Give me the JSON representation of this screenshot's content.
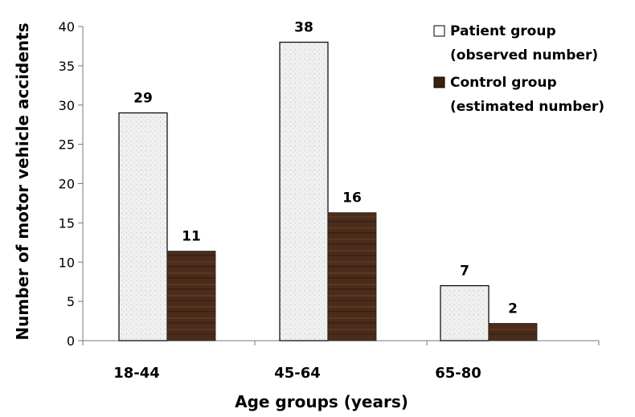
{
  "chart_data": {
    "type": "bar",
    "title": "",
    "xlabel": "Age groups (years)",
    "ylabel": "Number of motor vehicle accidents",
    "categories": [
      "18-44",
      "45-64",
      "65-80"
    ],
    "ylim": [
      0,
      40
    ],
    "yticks": [
      0,
      5,
      10,
      15,
      20,
      25,
      30,
      35,
      40
    ],
    "grid": false,
    "legend_position": "top-right",
    "series": [
      {
        "name_lines": [
          "Patient group",
          "(observed number)"
        ],
        "values": [
          29,
          38,
          7
        ],
        "labels": [
          "29",
          "38",
          "7"
        ],
        "color": "#f2f2f2"
      },
      {
        "name_lines": [
          "Control group",
          "(estimated number)"
        ],
        "values": [
          11.4,
          16.3,
          2.2
        ],
        "labels": [
          "11",
          "16",
          "2"
        ],
        "color": "#4a2c1a"
      }
    ]
  }
}
